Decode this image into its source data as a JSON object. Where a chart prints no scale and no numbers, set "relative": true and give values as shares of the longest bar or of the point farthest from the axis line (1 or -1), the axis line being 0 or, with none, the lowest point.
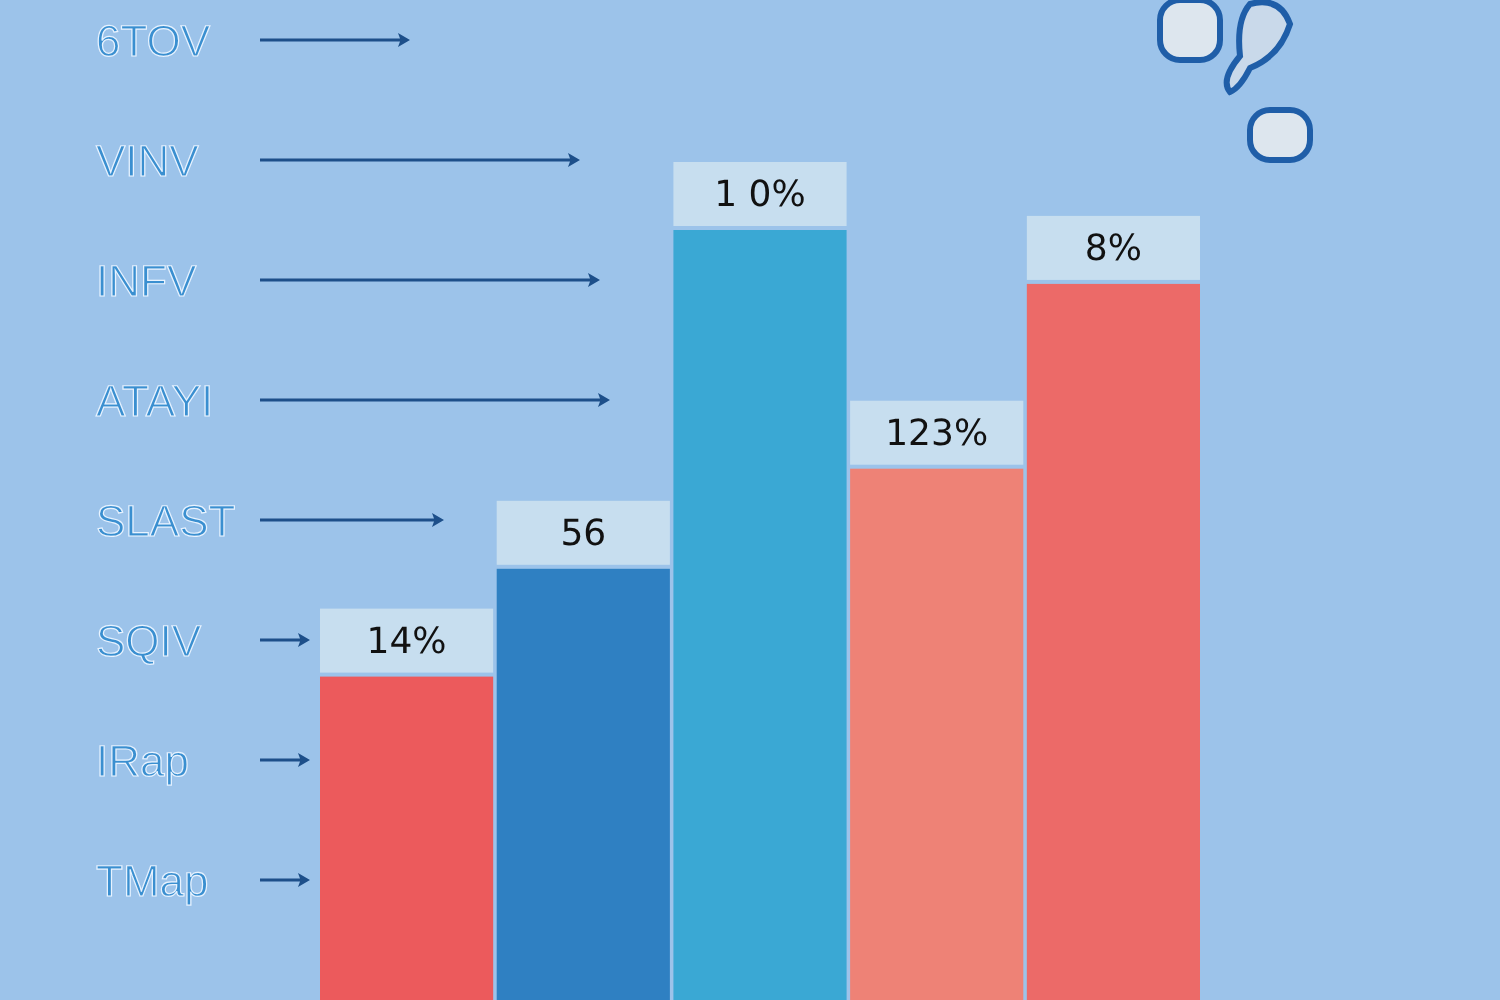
{
  "chart_data": {
    "type": "bar",
    "relative": true,
    "categories": [
      null,
      null,
      null,
      null,
      null
    ],
    "values": [
      0.42,
      0.56,
      1,
      0.69,
      0.93
    ],
    "colors": [
      "#ec5a5c",
      "#2f80c2",
      "#3aa8d4",
      "#ee8276",
      "#ec6a68"
    ],
    "annotations": [
      "14%",
      "56",
      "1 0%",
      "123%",
      "8%",
      "6TOV",
      "VINV",
      "INFV",
      "ATAYI",
      "SLAST",
      "SQIV",
      "IRap",
      "TMap"
    ]
  }
}
